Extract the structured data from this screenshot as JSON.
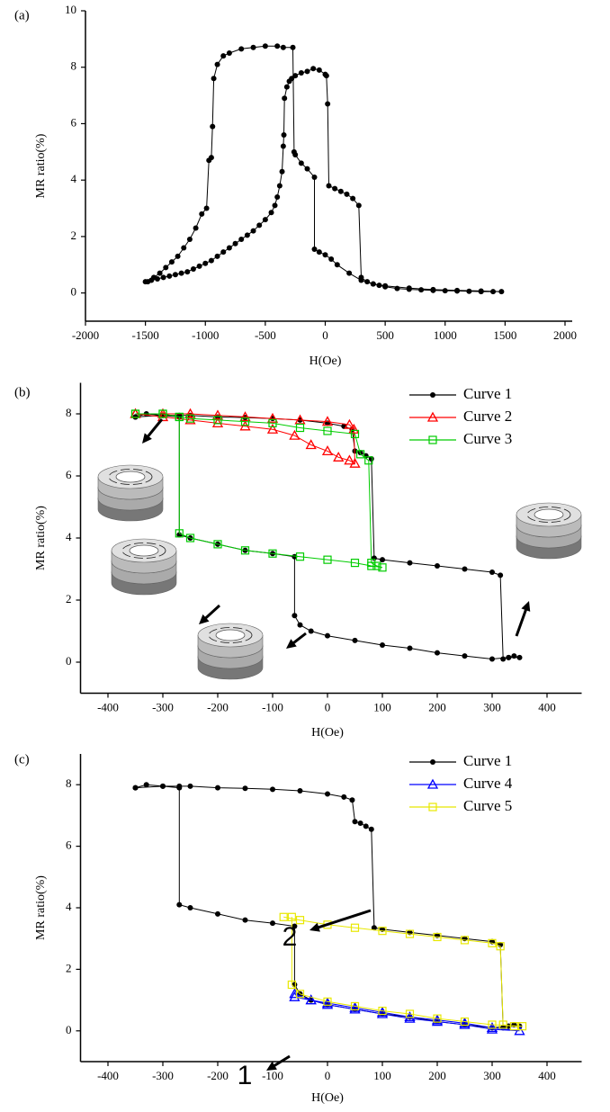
{
  "chart_data": [
    {
      "type": "line",
      "title": "(a)",
      "x_label": "H(Oe)",
      "y_label": "MR ratio(%)",
      "xlim": [
        -2000,
        2000
      ],
      "ylim": [
        -1,
        10
      ],
      "xticks": [
        -2000,
        -1500,
        -1000,
        -500,
        0,
        500,
        1000,
        1500,
        2000
      ],
      "yticks": [
        0,
        2,
        4,
        6,
        8,
        10
      ],
      "series": [
        {
          "color": "#000000",
          "marker": "circle",
          "x": [
            -1500,
            -1450,
            -1400,
            -1350,
            -1300,
            -1250,
            -1200,
            -1150,
            -1100,
            -1050,
            -1000,
            -950,
            -900,
            -850,
            -800,
            -750,
            -700,
            -650,
            -600,
            -550,
            -500,
            -450,
            -420,
            -400,
            -380,
            -360,
            -350,
            -345,
            -340,
            -320,
            -300,
            -280,
            -250,
            -200,
            -150,
            -100,
            -50,
            0,
            10,
            20,
            30,
            80,
            130,
            180,
            230,
            280,
            300,
            350,
            400,
            450,
            500,
            600,
            700,
            800,
            900,
            1000,
            1100,
            1200,
            1300,
            1400,
            1470,
            1300,
            1100,
            900,
            700,
            500,
            400,
            300,
            200,
            100,
            50,
            0,
            -50,
            -90,
            -90,
            -150,
            -200,
            -250,
            -260,
            -270,
            -350,
            -400,
            -500,
            -600,
            -700,
            -800,
            -850,
            -900,
            -930,
            -940,
            -950,
            -970,
            -990,
            -1030,
            -1080,
            -1130,
            -1180,
            -1230,
            -1280,
            -1330,
            -1380,
            -1430,
            -1480
          ],
          "values": [
            0.4,
            0.45,
            0.5,
            0.55,
            0.6,
            0.65,
            0.7,
            0.75,
            0.85,
            0.95,
            1.05,
            1.15,
            1.3,
            1.45,
            1.6,
            1.75,
            1.9,
            2.05,
            2.2,
            2.4,
            2.6,
            2.85,
            3.1,
            3.4,
            3.8,
            4.3,
            5.2,
            5.6,
            6.9,
            7.3,
            7.5,
            7.6,
            7.7,
            7.8,
            7.85,
            7.95,
            7.9,
            7.75,
            7.7,
            6.7,
            3.8,
            3.7,
            3.6,
            3.5,
            3.35,
            3.1,
            0.55,
            0.4,
            0.32,
            0.27,
            0.22,
            0.16,
            0.13,
            0.11,
            0.09,
            0.08,
            0.07,
            0.06,
            0.05,
            0.05,
            0.05,
            0.07,
            0.09,
            0.12,
            0.17,
            0.25,
            0.32,
            0.45,
            0.7,
            1.0,
            1.2,
            1.35,
            1.45,
            1.55,
            4.1,
            4.4,
            4.6,
            4.9,
            5.0,
            8.7,
            8.7,
            8.75,
            8.75,
            8.7,
            8.65,
            8.5,
            8.4,
            8.1,
            7.6,
            5.9,
            4.8,
            4.7,
            3.0,
            2.8,
            2.3,
            1.9,
            1.6,
            1.3,
            1.1,
            0.9,
            0.7,
            0.55,
            0.4
          ]
        }
      ]
    },
    {
      "type": "line",
      "title": "(b)",
      "x_label": "H(Oe)",
      "y_label": "MR ratio(%)",
      "xlim": [
        -450,
        450
      ],
      "ylim": [
        -1,
        9
      ],
      "xticks": [
        -400,
        -300,
        -200,
        -100,
        0,
        100,
        200,
        300,
        400
      ],
      "yticks": [
        0,
        2,
        4,
        6,
        8
      ],
      "legend": "upper right",
      "series": [
        {
          "name": "Curve 1",
          "color": "#000000",
          "marker": "circle",
          "x": [
            -350,
            -330,
            -300,
            -270,
            -250,
            -200,
            -150,
            -100,
            -50,
            0,
            30,
            45,
            50,
            60,
            70,
            80,
            85,
            100,
            150,
            200,
            250,
            300,
            315,
            320,
            330,
            340,
            350,
            330,
            300,
            250,
            200,
            150,
            100,
            50,
            0,
            -30,
            -50,
            -60,
            -60,
            -100,
            -150,
            -200,
            -250,
            -270,
            -270,
            -300,
            -350
          ],
          "values": [
            7.9,
            8.0,
            7.95,
            7.95,
            7.95,
            7.9,
            7.88,
            7.85,
            7.8,
            7.7,
            7.6,
            7.5,
            6.8,
            6.75,
            6.65,
            6.55,
            3.35,
            3.3,
            3.2,
            3.1,
            3.0,
            2.9,
            2.8,
            0.1,
            0.15,
            0.2,
            0.15,
            0.15,
            0.1,
            0.2,
            0.3,
            0.45,
            0.55,
            0.7,
            0.85,
            1.0,
            1.2,
            1.5,
            3.4,
            3.5,
            3.6,
            3.8,
            4.0,
            4.1,
            7.9,
            7.95,
            7.9
          ]
        },
        {
          "name": "Curve 2",
          "color": "#ff0000",
          "marker": "triangle",
          "x": [
            -350,
            -300,
            -250,
            -200,
            -150,
            -100,
            -50,
            0,
            40,
            48,
            50,
            40,
            20,
            0,
            -30,
            -60,
            -100,
            -150,
            -200,
            -250,
            -300,
            -350
          ],
          "values": [
            8.0,
            8.0,
            8.0,
            7.95,
            7.9,
            7.85,
            7.8,
            7.75,
            7.65,
            7.5,
            6.4,
            6.5,
            6.6,
            6.8,
            7.0,
            7.3,
            7.5,
            7.6,
            7.7,
            7.8,
            7.9,
            8.0
          ]
        },
        {
          "name": "Curve 3",
          "color": "#00cc00",
          "marker": "square",
          "x": [
            -350,
            -300,
            -270,
            -250,
            -200,
            -150,
            -100,
            -50,
            0,
            50,
            60,
            75,
            80,
            90,
            100,
            80,
            50,
            0,
            -50,
            -100,
            -150,
            -200,
            -250,
            -270,
            -270,
            -300,
            -350
          ],
          "values": [
            8.0,
            8.0,
            7.9,
            7.85,
            7.8,
            7.75,
            7.7,
            7.55,
            7.45,
            7.35,
            6.7,
            6.5,
            3.2,
            3.1,
            3.05,
            3.1,
            3.2,
            3.3,
            3.4,
            3.5,
            3.6,
            3.8,
            4.0,
            4.15,
            7.9,
            8.0,
            8.0
          ]
        }
      ]
    },
    {
      "type": "line",
      "title": "(c)",
      "x_label": "H(Oe)",
      "y_label": "MR ratio(%)",
      "xlim": [
        -450,
        450
      ],
      "ylim": [
        -1,
        9
      ],
      "xticks": [
        -400,
        -300,
        -200,
        -100,
        0,
        100,
        200,
        300,
        400
      ],
      "yticks": [
        0,
        2,
        4,
        6,
        8
      ],
      "legend": "upper right",
      "annotations": [
        "1",
        "2"
      ],
      "series": [
        {
          "name": "Curve 1",
          "color": "#000000",
          "marker": "circle",
          "x": [
            -350,
            -330,
            -300,
            -270,
            -250,
            -200,
            -150,
            -100,
            -50,
            0,
            30,
            45,
            50,
            60,
            70,
            80,
            85,
            100,
            150,
            200,
            250,
            300,
            315,
            320,
            330,
            340,
            350,
            330,
            300,
            250,
            200,
            150,
            100,
            50,
            0,
            -30,
            -50,
            -60,
            -60,
            -100,
            -150,
            -200,
            -250,
            -270,
            -270,
            -300,
            -350
          ],
          "values": [
            7.9,
            8.0,
            7.95,
            7.95,
            7.95,
            7.9,
            7.88,
            7.85,
            7.8,
            7.7,
            7.6,
            7.5,
            6.8,
            6.75,
            6.65,
            6.55,
            3.35,
            3.3,
            3.2,
            3.1,
            3.0,
            2.9,
            2.8,
            0.1,
            0.15,
            0.2,
            0.15,
            0.15,
            0.1,
            0.2,
            0.3,
            0.45,
            0.55,
            0.7,
            0.85,
            1.0,
            1.2,
            1.5,
            3.4,
            3.5,
            3.6,
            3.8,
            4.0,
            4.1,
            7.9,
            7.95,
            7.9
          ]
        },
        {
          "name": "Curve 4",
          "color": "#0000ff",
          "marker": "triangle",
          "x": [
            -60,
            -30,
            0,
            50,
            100,
            150,
            200,
            250,
            300,
            350,
            300,
            250,
            200,
            150,
            100,
            50,
            0,
            -30,
            -60
          ],
          "values": [
            1.1,
            1.0,
            0.85,
            0.7,
            0.55,
            0.4,
            0.3,
            0.2,
            0.05,
            0.0,
            0.1,
            0.25,
            0.35,
            0.45,
            0.6,
            0.75,
            0.9,
            1.0,
            1.2
          ]
        },
        {
          "name": "Curve 5",
          "color": "#e8e800",
          "marker": "square",
          "x": [
            -80,
            -50,
            0,
            50,
            100,
            150,
            200,
            250,
            300,
            315,
            320,
            340,
            355,
            300,
            250,
            200,
            150,
            100,
            50,
            0,
            -50,
            -65,
            -65
          ],
          "values": [
            3.7,
            3.6,
            3.45,
            3.35,
            3.25,
            3.15,
            3.05,
            2.95,
            2.85,
            2.75,
            0.2,
            0.15,
            0.15,
            0.2,
            0.3,
            0.4,
            0.55,
            0.65,
            0.8,
            0.95,
            1.2,
            1.5,
            3.7
          ]
        }
      ]
    }
  ]
}
